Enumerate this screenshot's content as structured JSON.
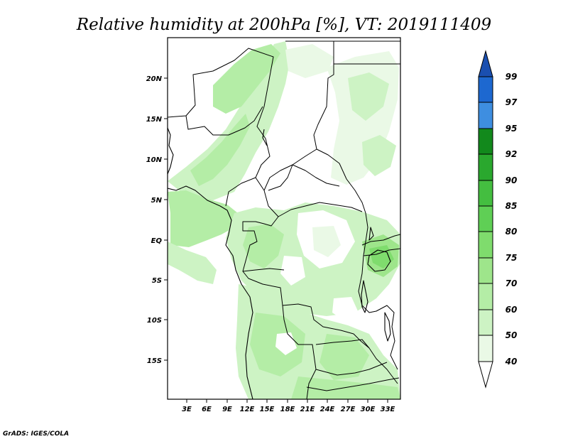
{
  "title": "Relative humidity at 200hPa [%], VT: 2019111409",
  "credit": "GrADS: IGES/COLA",
  "map": {
    "lat_ticks": [
      "20N",
      "15N",
      "10N",
      "5N",
      "EQ",
      "5S",
      "10S",
      "15S"
    ],
    "lon_ticks": [
      "3E",
      "6E",
      "9E",
      "12E",
      "15E",
      "18E",
      "21E",
      "24E",
      "27E",
      "30E",
      "33E"
    ]
  },
  "colorbar": {
    "labels": [
      "40",
      "50",
      "60",
      "70",
      "75",
      "80",
      "85",
      "90",
      "92",
      "95",
      "97",
      "99"
    ],
    "colors": [
      "#ffffff",
      "#eaf9e6",
      "#cdf3c4",
      "#b4eda6",
      "#9ee58b",
      "#7fdc6d",
      "#5fcf55",
      "#44be40",
      "#2aa82e",
      "#12891c",
      "#3e8ee0",
      "#1d68d0",
      "#1a4fb0"
    ]
  }
}
